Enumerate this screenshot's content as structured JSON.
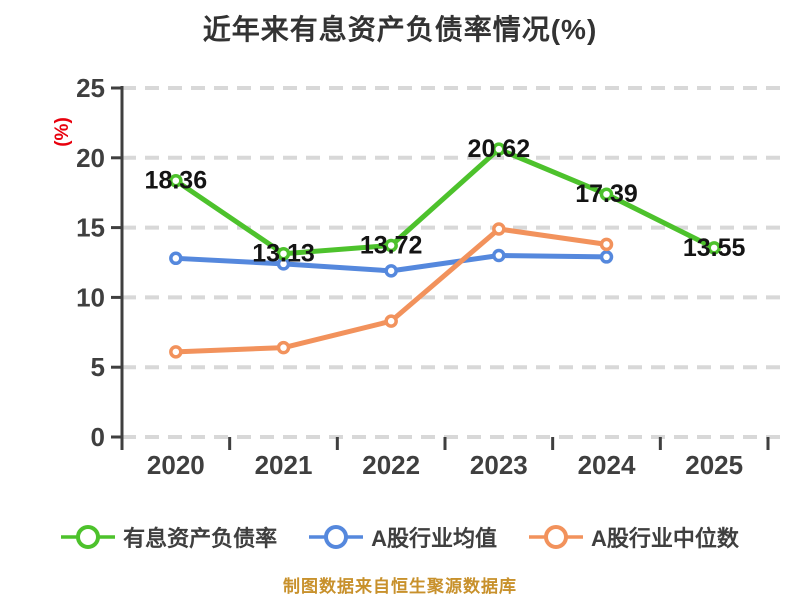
{
  "chart_data": {
    "type": "line",
    "title": "近年来有息资产负债率情况(%)",
    "title_color": "#333333",
    "ylabel": "(%)",
    "ylabel_color": "#e8000d",
    "footer": "制图数据来自恒生聚源数据库",
    "footer_color": "#c8912c",
    "categories": [
      "2020",
      "2021",
      "2022",
      "2023",
      "2024",
      "2025"
    ],
    "ylim": [
      0,
      25
    ],
    "y_ticks": [
      0,
      5,
      10,
      15,
      20,
      25
    ],
    "grid": true,
    "grid_color": "#d8d8d8",
    "axis_color": "#3f3f3f",
    "tick_label_color": "#3f3f3f",
    "data_label_color": "#141414",
    "legend_position": "bottom",
    "series": [
      {
        "name": "有息资产负债率",
        "color": "#4dc22c",
        "values": [
          18.36,
          13.13,
          13.72,
          20.62,
          17.39,
          13.55
        ],
        "data_labels": [
          "18.36",
          "13.13",
          "13.72",
          "20.62",
          "17.39",
          "13.55"
        ]
      },
      {
        "name": "A股行业均值",
        "color": "#5588dd",
        "values": [
          12.8,
          12.4,
          11.9,
          13.0,
          12.9,
          null
        ],
        "data_labels": null
      },
      {
        "name": "A股行业中位数",
        "color": "#f2925c",
        "values": [
          6.1,
          6.4,
          8.3,
          14.9,
          13.8,
          null
        ],
        "data_labels": null
      }
    ]
  }
}
